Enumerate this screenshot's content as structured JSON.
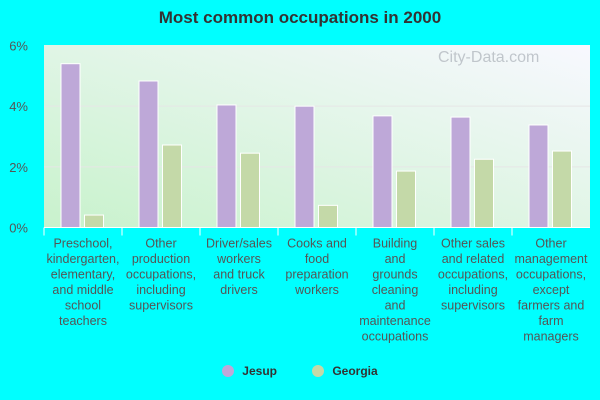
{
  "chart_data": {
    "type": "bar",
    "title": "Most common occupations in 2000",
    "categories": [
      [
        "Preschool,",
        "kindergarten,",
        "elementary,",
        "and middle",
        "school",
        "teachers"
      ],
      [
        "Other",
        "production",
        "occupations,",
        "including",
        "supervisors"
      ],
      [
        "Driver/sales",
        "workers",
        "and truck",
        "drivers"
      ],
      [
        "Cooks and",
        "food",
        "preparation",
        "workers"
      ],
      [
        "Building",
        "and",
        "grounds",
        "cleaning",
        "and",
        "maintenance",
        "occupations"
      ],
      [
        "Other sales",
        "and related",
        "occupations,",
        "including",
        "supervisors"
      ],
      [
        "Other",
        "management",
        "occupations,",
        "except",
        "farmers and",
        "farm",
        "managers"
      ]
    ],
    "series": [
      {
        "name": "Jesup",
        "color": "#bea8d8",
        "values": [
          5.4,
          4.83,
          4.04,
          4.0,
          3.68,
          3.64,
          3.38
        ]
      },
      {
        "name": "Georgia",
        "color": "#c4d9a8",
        "values": [
          0.41,
          2.72,
          2.45,
          0.73,
          1.86,
          2.25,
          2.52
        ]
      }
    ],
    "ylim": [
      0,
      6
    ],
    "yticks": [
      "0%",
      "2%",
      "4%",
      "6%"
    ],
    "grid": true,
    "legend": "bottom",
    "watermark": "City-Data.com"
  }
}
